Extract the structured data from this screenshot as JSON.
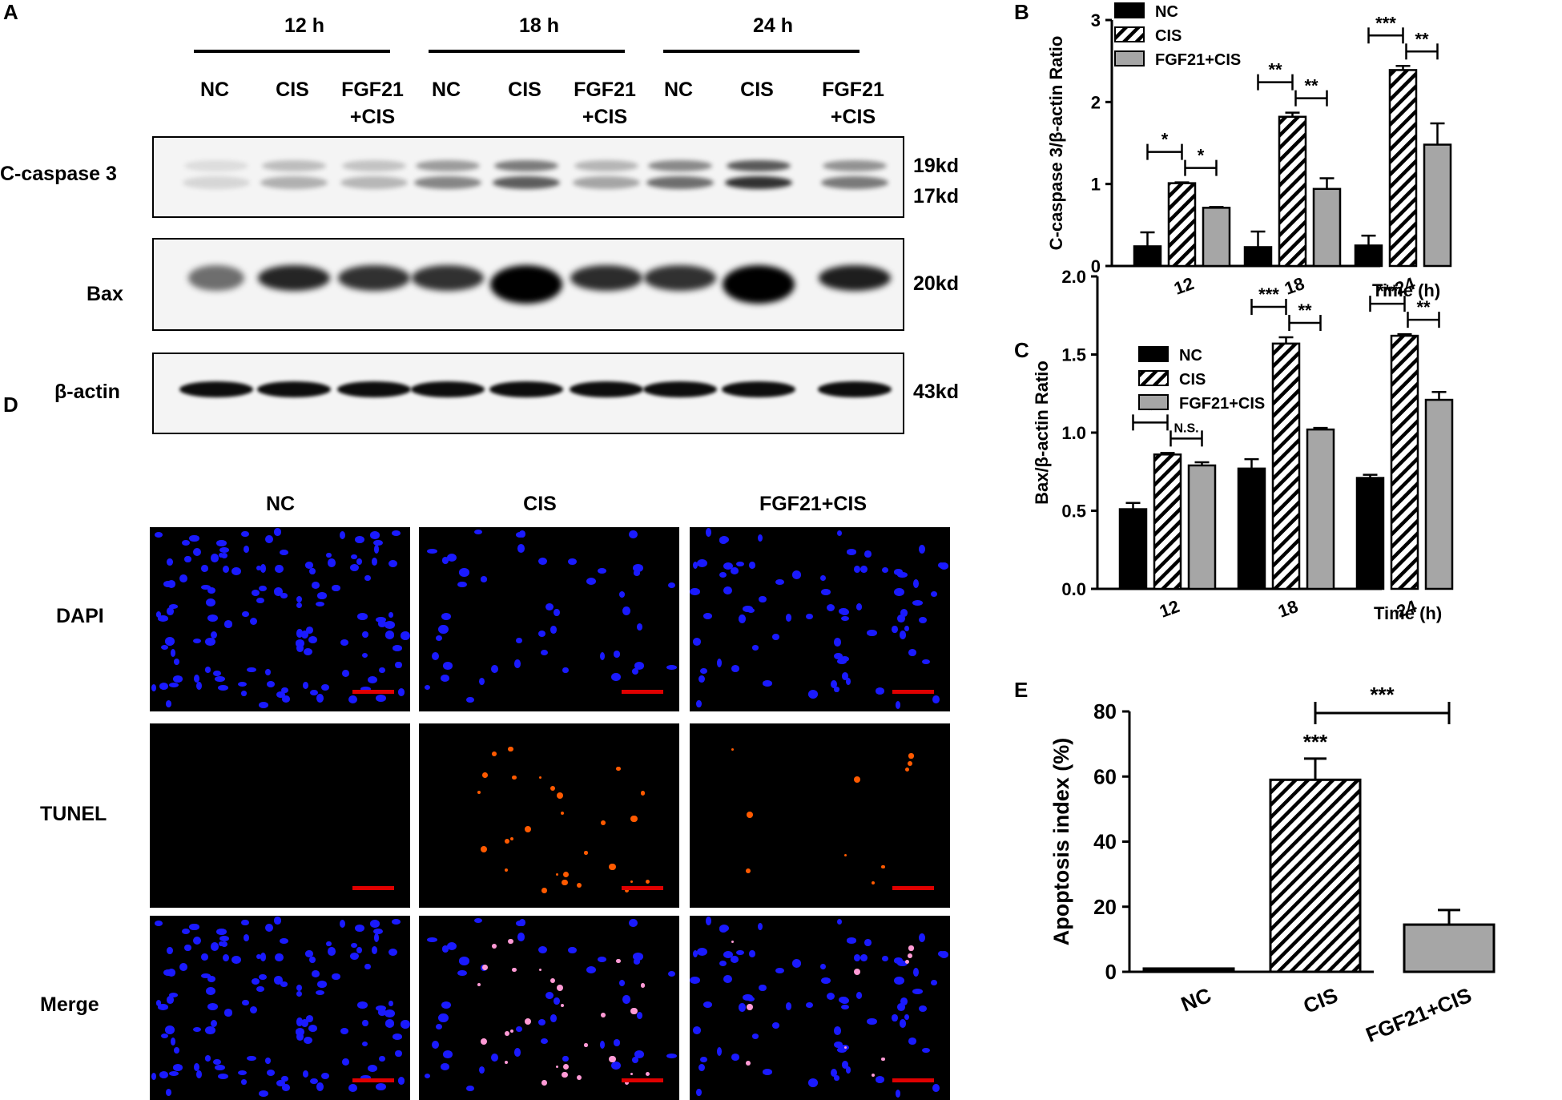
{
  "panel_letters": {
    "a": "A",
    "b": "B",
    "c": "C",
    "d": "D",
    "e": "E"
  },
  "western": {
    "time_groups": [
      "12 h",
      "18 h",
      "24 h"
    ],
    "lanes": [
      "NC",
      "CIS",
      "FGF21\n+CIS",
      "NC",
      "CIS",
      "FGF21\n+CIS",
      "NC",
      "CIS",
      "FGF21\n+CIS"
    ],
    "proteins": [
      {
        "name": "C-caspase 3",
        "sizes": [
          "19kd",
          "17kd"
        ]
      },
      {
        "name": "Bax",
        "sizes": [
          "20kd"
        ]
      },
      {
        "name": "β-actin",
        "sizes": [
          "43kd"
        ]
      }
    ]
  },
  "microscopy": {
    "columns": [
      "NC",
      "CIS",
      "FGF21+CIS"
    ],
    "rows": [
      "DAPI",
      "TUNEL",
      "Merge"
    ],
    "colors": {
      "nuclei": "#1a1aff",
      "tunel": "#ff5a00",
      "scale_bar": "#e00000"
    }
  },
  "chart_data": [
    {
      "panel": "B",
      "type": "bar",
      "categories": [
        "12",
        "18",
        "24"
      ],
      "xlabel": "Time   (h)",
      "ylabel": "C-caspase 3/β-actin Ratio",
      "ylim": [
        0,
        3
      ],
      "yticks": [
        "0",
        "1",
        "2",
        "3"
      ],
      "legend_position": "top-left",
      "series": [
        {
          "name": "NC",
          "values": [
            0.24,
            0.23,
            0.25
          ],
          "errors": [
            0.17,
            0.19,
            0.12
          ],
          "style": "solid",
          "color": "#000000"
        },
        {
          "name": "CIS",
          "values": [
            1.01,
            1.82,
            2.39
          ],
          "errors": [
            0.01,
            0.05,
            0.05
          ],
          "style": "hatched",
          "color": "#ffffff"
        },
        {
          "name": "FGF21+CIS",
          "values": [
            0.71,
            0.94,
            1.48
          ],
          "errors": [
            0.01,
            0.13,
            0.26
          ],
          "style": "solid",
          "color": "#a6a6a6"
        }
      ],
      "significance": [
        {
          "group": 0,
          "left": [
            "*",
            "*"
          ]
        },
        {
          "group": 1,
          "left": [
            "**",
            "**"
          ]
        },
        {
          "group": 2,
          "left": [
            "***",
            "**"
          ]
        }
      ]
    },
    {
      "panel": "C",
      "type": "bar",
      "categories": [
        "12",
        "18",
        "24"
      ],
      "xlabel": "Time   (h)",
      "ylabel": "Bax/β-actin Ratio",
      "ylim": [
        0,
        2
      ],
      "yticks": [
        "0.0",
        "0.5",
        "1.0",
        "1.5",
        "2.0"
      ],
      "legend_position": "top-left",
      "series": [
        {
          "name": "NC",
          "values": [
            0.51,
            0.77,
            0.71
          ],
          "errors": [
            0.04,
            0.06,
            0.02
          ],
          "style": "solid",
          "color": "#000000"
        },
        {
          "name": "CIS",
          "values": [
            0.86,
            1.57,
            1.62
          ],
          "errors": [
            0.01,
            0.04,
            0.01
          ],
          "style": "hatched",
          "color": "#ffffff"
        },
        {
          "name": "FGF21+CIS",
          "values": [
            0.79,
            1.02,
            1.21
          ],
          "errors": [
            0.02,
            0.01,
            0.05
          ],
          "style": "solid",
          "color": "#a6a6a6"
        }
      ],
      "significance": [
        {
          "group": 0,
          "left": [
            "*",
            "N.S."
          ]
        },
        {
          "group": 1,
          "left": [
            "***",
            "**"
          ]
        },
        {
          "group": 2,
          "left": [
            "***",
            "**"
          ]
        }
      ]
    },
    {
      "panel": "E",
      "type": "bar",
      "categories": [
        "NC",
        "CIS",
        "FGF21+CIS"
      ],
      "xlabel": "",
      "ylabel": "Apoptosis index (%)",
      "ylim": [
        0,
        80
      ],
      "yticks": [
        "0",
        "20",
        "40",
        "60",
        "80"
      ],
      "values": [
        1,
        59,
        14.5
      ],
      "errors": [
        0,
        6.5,
        4.5
      ],
      "styles": [
        "solid-black",
        "hatched",
        "solid-gray"
      ],
      "significance": [
        {
          "label": "***",
          "over": "CIS"
        },
        {
          "label": "***",
          "bracket": [
            "CIS",
            "FGF21+CIS"
          ]
        }
      ]
    }
  ]
}
